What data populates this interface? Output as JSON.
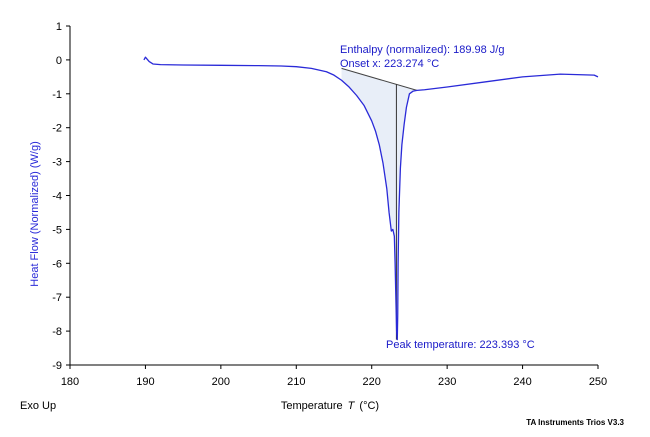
{
  "chart_data": {
    "type": "line",
    "xlabel": "Temperature",
    "xlabel_symbol": "T",
    "xlabel_unit": "(°C)",
    "ylabel": "Heat Flow (Normalized)  (W/g)",
    "xlim": [
      180,
      250
    ],
    "ylim": [
      -9,
      1
    ],
    "x_ticks": [
      180,
      190,
      200,
      210,
      220,
      230,
      240,
      250
    ],
    "y_ticks": [
      1,
      0,
      -1,
      -2,
      -3,
      -4,
      -5,
      -6,
      -7,
      -8,
      -9
    ],
    "grid": false,
    "series": [
      {
        "color": "#2a2ad8",
        "x": [
          189.8,
          190.0,
          190.5,
          191.0,
          192.0,
          195.0,
          200.0,
          205.0,
          208.0,
          210.0,
          212.0,
          214.0,
          215.0,
          216.0,
          217.0,
          218.0,
          219.0,
          220.0,
          220.5,
          221.0,
          221.5,
          222.0,
          222.3,
          222.6,
          222.8,
          223.0,
          223.1,
          223.2,
          223.3,
          223.39,
          223.45,
          223.5,
          223.6,
          223.8,
          224.0,
          224.3,
          224.6,
          225.0,
          225.5,
          226.0,
          227.0,
          230.0,
          235.0,
          240.0,
          245.0,
          249.5,
          250.0
        ],
        "values": [
          0.0,
          0.08,
          -0.05,
          -0.12,
          -0.14,
          -0.15,
          -0.16,
          -0.17,
          -0.18,
          -0.2,
          -0.25,
          -0.35,
          -0.45,
          -0.6,
          -0.8,
          -1.05,
          -1.35,
          -1.8,
          -2.1,
          -2.5,
          -3.05,
          -3.8,
          -4.5,
          -5.05,
          -5.0,
          -5.2,
          -6.0,
          -7.0,
          -8.0,
          -8.25,
          -7.5,
          -6.0,
          -4.5,
          -3.2,
          -2.5,
          -1.9,
          -1.4,
          -1.0,
          -0.92,
          -0.9,
          -0.88,
          -0.8,
          -0.65,
          -0.5,
          -0.42,
          -0.45,
          -0.5
        ]
      }
    ],
    "baseline": {
      "x": [
        216.0,
        226.0
      ],
      "values": [
        -0.25,
        -0.9
      ]
    },
    "onset_marker": {
      "x": 223.274,
      "y_top": -0.72,
      "y_bottom": -8.25
    },
    "annotations": {
      "enthalpy": "Enthalpy (normalized): 189.98 J/g",
      "onset": "Onset x: 223.274 °C",
      "peak": "Peak temperature: 223.393 °C"
    }
  },
  "footer": {
    "exo_label": "Exo Up",
    "brand": "TA Instruments Trios V3.3"
  }
}
